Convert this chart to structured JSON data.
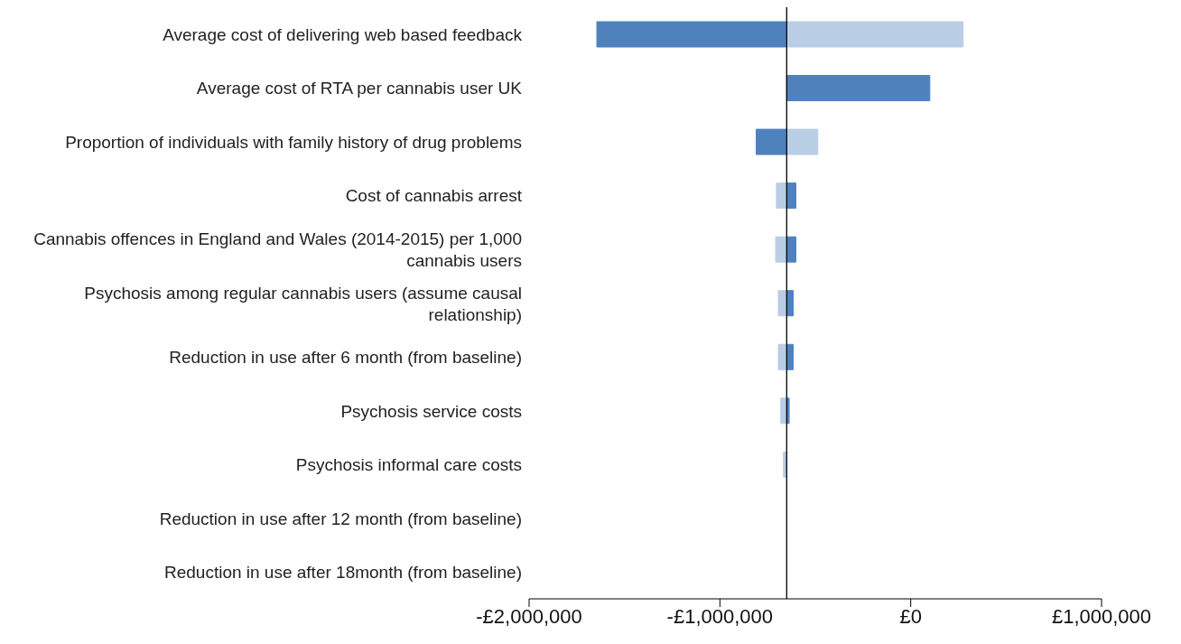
{
  "chart_data": {
    "type": "bar",
    "orientation": "horizontal",
    "categories": [
      "Average cost of delivering web based feedback",
      "Average cost of RTA per cannabis user UK",
      "Proportion of individuals with family history of drug problems",
      "Cost of cannabis arrest",
      "Cannabis offences in England and Wales (2014-2015) per 1,000 cannabis users",
      "Psychosis among regular cannabis users (assume causal relationship)",
      "Reduction in use after 6 month (from baseline)",
      "Psychosis service costs",
      "Psychosis informal care costs",
      "Reduction in use after 12 month (from baseline)",
      "Reduction in use after 18month (from baseline)"
    ],
    "series": [
      {
        "color": "#4f81bd",
        "base": [
          -650000,
          -650000,
          -650000,
          -650000,
          -650000,
          -650000,
          -650000,
          -650000,
          null,
          null,
          null
        ],
        "values": [
          -995000,
          750000,
          -160000,
          48000,
          48000,
          34000,
          34000,
          13000,
          null,
          null,
          null
        ]
      },
      {
        "color": "#b9cde5",
        "base": [
          -650000,
          null,
          -650000,
          -650000,
          -650000,
          -650000,
          -650000,
          -650000,
          -650000,
          null,
          null
        ],
        "values": [
          925000,
          null,
          163000,
          -54000,
          -58000,
          -44000,
          -44000,
          -31000,
          -17000,
          null,
          null
        ]
      }
    ],
    "xlim": [
      -2000000,
      1000000
    ],
    "xticks": [
      {
        "value": -2000000,
        "label": "-£2,000,000"
      },
      {
        "value": -1000000,
        "label": "-£1,000,000"
      },
      {
        "value": 0,
        "label": "£0"
      },
      {
        "value": 1000000,
        "label": "£1,000,000"
      }
    ],
    "ref_lines": [
      {
        "axis": "x",
        "value": -650000,
        "color": "#000000"
      }
    ],
    "grid": false,
    "legend": false
  }
}
